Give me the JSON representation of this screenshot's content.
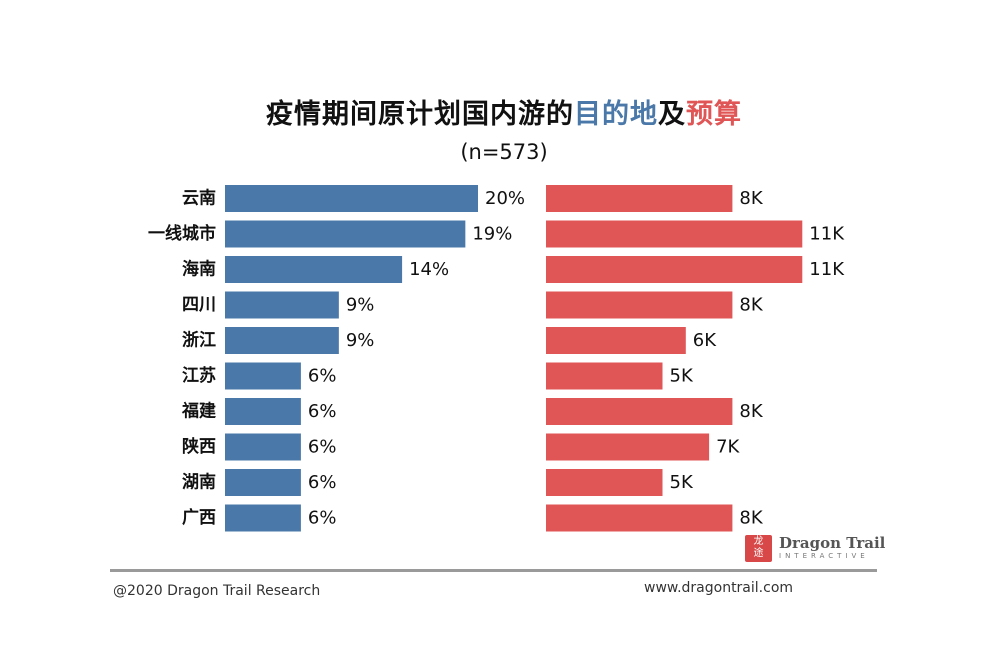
{
  "title": {
    "prefix": "疫情期间原计划国内游的",
    "highlight_blue": "目的地",
    "middle": "及",
    "highlight_red": "预算"
  },
  "subtitle": "(n=573)",
  "colors": {
    "blue": "#4a78a8",
    "red": "#e05556",
    "text": "#111111"
  },
  "chart_data": {
    "type": "bar",
    "orientation": "horizontal",
    "categories": [
      "云南",
      "一线城市",
      "海南",
      "四川",
      "浙江",
      "江苏",
      "福建",
      "陕西",
      "湖南",
      "广西"
    ],
    "series": [
      {
        "name": "目的地",
        "color": "#4a78a8",
        "values": [
          20,
          19,
          14,
          9,
          9,
          6,
          6,
          6,
          6,
          6
        ],
        "labels": [
          "20%",
          "19%",
          "14%",
          "9%",
          "9%",
          "6%",
          "6%",
          "6%",
          "6%",
          "6%"
        ]
      },
      {
        "name": "预算",
        "color": "#e05556",
        "values": [
          8,
          11,
          11,
          8,
          6,
          5,
          8,
          7,
          5,
          8
        ],
        "labels": [
          "8K",
          "11K",
          "11K",
          "8K",
          "6K",
          "5K",
          "8K",
          "7K",
          "5K",
          "8K"
        ]
      }
    ]
  },
  "footer": {
    "copyright": "@2020 Dragon Trail Research",
    "website": "www.dragontrail.com"
  },
  "brand": {
    "name": "Dragon Trail",
    "sub": "INTERACTIVE"
  }
}
